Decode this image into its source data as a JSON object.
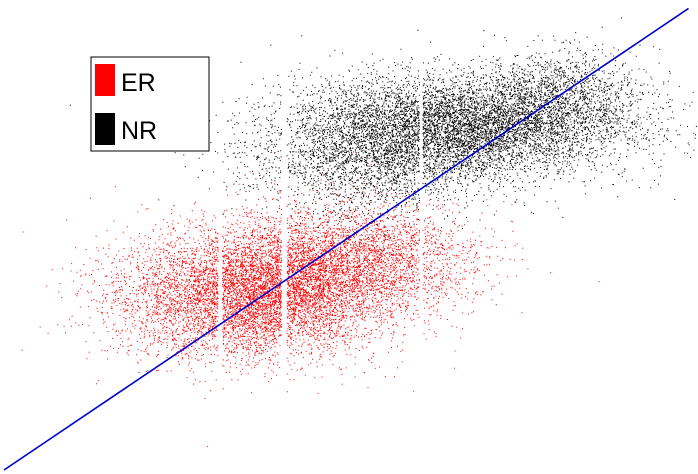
{
  "chart_data": {
    "type": "scatter",
    "title": "",
    "xlabel": "",
    "ylabel": "",
    "axes_visible": false,
    "grid": false,
    "legend": {
      "placement": "top-left",
      "entries": [
        {
          "label": "ER",
          "color": "#ff0000"
        },
        {
          "label": "NR",
          "color": "#000000"
        }
      ]
    },
    "series": [
      {
        "name": "ER",
        "color": "#ff0000",
        "marker": "point",
        "clusters": [
          {
            "center": [
              0.0,
              0.0
            ],
            "spread": [
              0.6,
              0.35
            ],
            "weight": 0.55
          },
          {
            "center": [
              0.55,
              0.3
            ],
            "spread": [
              0.5,
              0.35
            ],
            "weight": 0.3
          },
          {
            "center": [
              1.3,
              0.45
            ],
            "spread": [
              0.45,
              0.3
            ],
            "weight": 0.15
          }
        ]
      },
      {
        "name": "NR",
        "color": "#000000",
        "marker": "point",
        "clusters": [
          {
            "center": [
              2.0,
              1.95
            ],
            "spread": [
              0.75,
              0.28
            ],
            "weight": 0.65
          },
          {
            "center": [
              1.2,
              1.55
            ],
            "spread": [
              0.6,
              0.3
            ],
            "weight": 0.25
          },
          {
            "center": [
              2.9,
              2.3
            ],
            "spread": [
              0.35,
              0.25
            ],
            "weight": 0.1
          }
        ]
      }
    ],
    "reference_line": {
      "color": "#0000cc",
      "from": [
        -2.2,
        -1.95
      ],
      "to": [
        4.05,
        3.25
      ]
    },
    "xlim": [
      -2.2,
      4.1
    ],
    "ylim": [
      -1.95,
      3.3
    ]
  }
}
